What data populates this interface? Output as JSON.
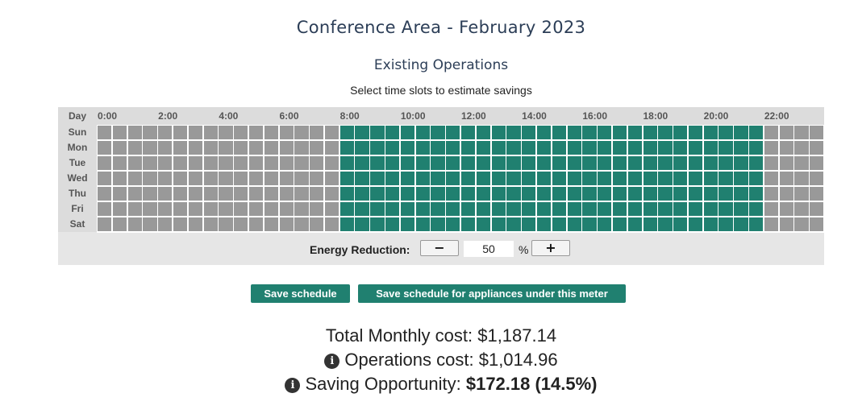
{
  "page": {
    "title": "Conference Area - February 2023",
    "subtitle": "Existing Operations",
    "hint": "Select time slots to estimate savings"
  },
  "schedule": {
    "day_header": "Day",
    "hour_labels": [
      "0:00",
      "2:00",
      "4:00",
      "6:00",
      "8:00",
      "10:00",
      "12:00",
      "14:00",
      "16:00",
      "18:00",
      "20:00",
      "22:00"
    ],
    "days": [
      "Sun",
      "Mon",
      "Tue",
      "Wed",
      "Thu",
      "Fri",
      "Sat"
    ],
    "slots_per_day": 48,
    "active_slot_start": 16,
    "active_slot_end": 43,
    "active_color": "#208070",
    "inactive_color": "#999999"
  },
  "energy_reduction": {
    "label": "Energy Reduction:",
    "value": "50",
    "unit": "%",
    "decrease_symbol": "−",
    "increase_symbol": "+"
  },
  "buttons": {
    "save_schedule": "Save schedule",
    "save_appliances": "Save schedule for appliances under this meter"
  },
  "costs": {
    "total_label": "Total Monthly cost:",
    "total_value": "$1,187.14",
    "operations_label": "Operations cost:",
    "operations_value": "$1,014.96",
    "saving_label": "Saving Opportunity:",
    "saving_value": "$172.18 (14.5%)",
    "info_icon": "info-circle-icon"
  }
}
